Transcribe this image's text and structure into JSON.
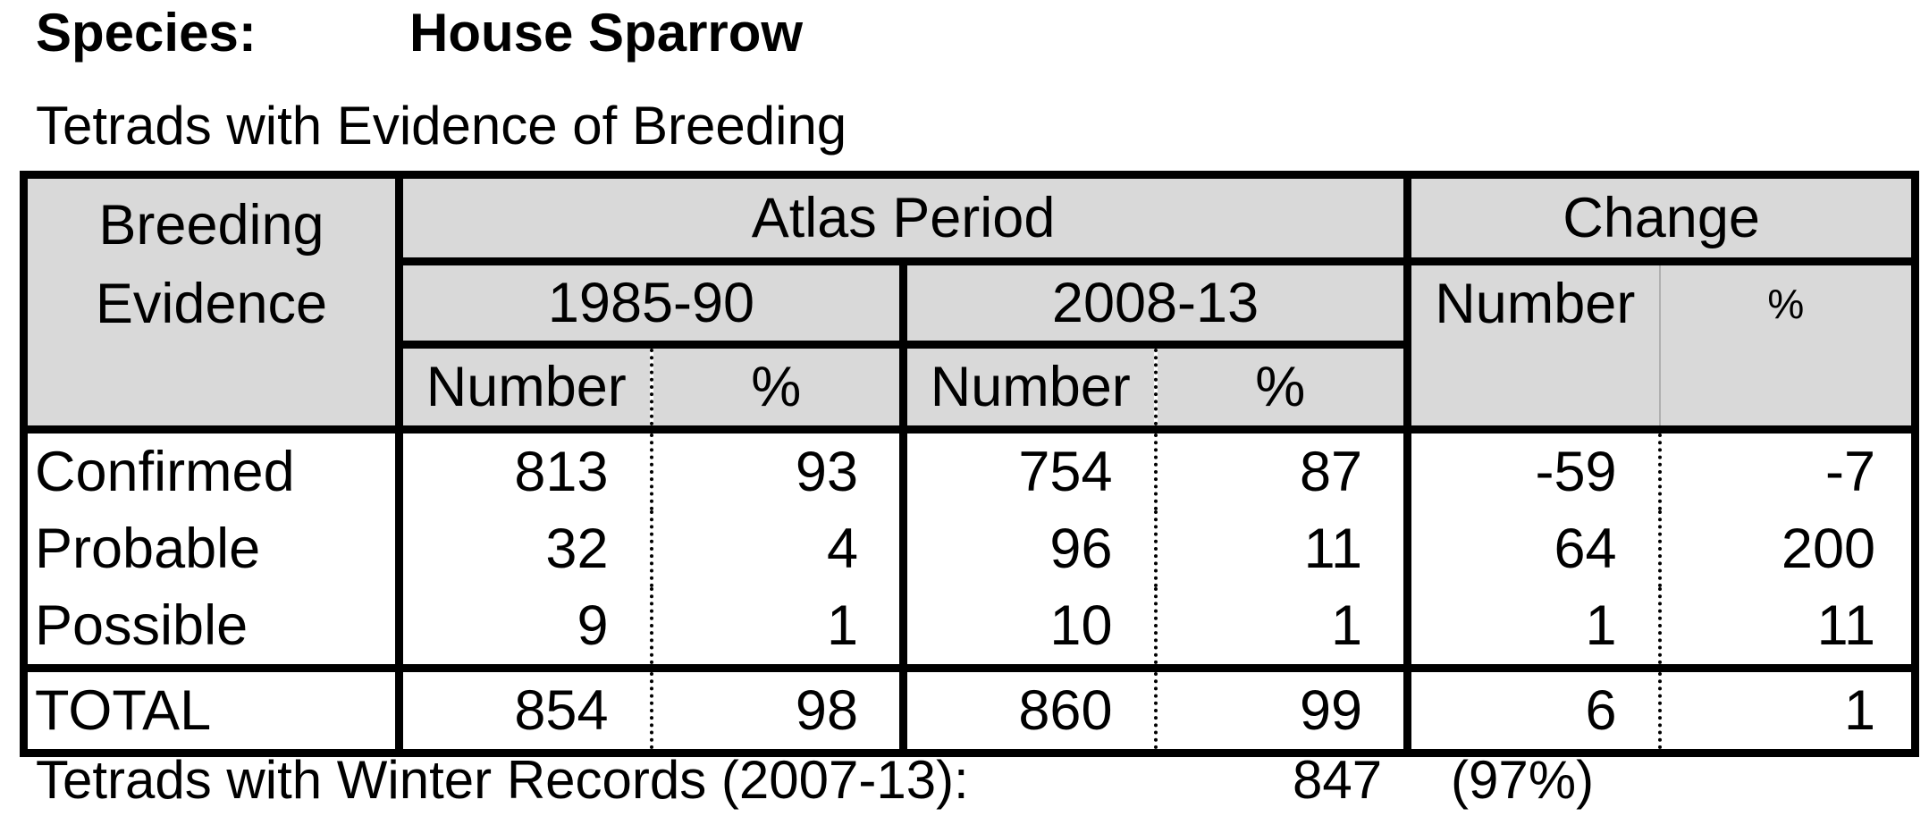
{
  "header": {
    "species_label": "Species:",
    "species_name": "House Sparrow",
    "subtitle": "Tetrads with Evidence of Breeding"
  },
  "table": {
    "corner_line1": "Breeding",
    "corner_line2": "Evidence",
    "atlas_period": "Atlas Period",
    "change": "Change",
    "period1": "1985-90",
    "period2": "2008-13",
    "col_number": "Number",
    "col_pct": "%",
    "rows": [
      {
        "label": "Confirmed",
        "n1": "813",
        "p1": "93",
        "n2": "754",
        "p2": "87",
        "cn": "-59",
        "cp": "-7"
      },
      {
        "label": "Probable",
        "n1": "32",
        "p1": "4",
        "n2": "96",
        "p2": "11",
        "cn": "64",
        "cp": "200"
      },
      {
        "label": "Possible",
        "n1": "9",
        "p1": "1",
        "n2": "10",
        "p2": "1",
        "cn": "1",
        "cp": "11"
      }
    ],
    "total": {
      "label": "TOTAL",
      "n1": "854",
      "p1": "98",
      "n2": "860",
      "p2": "99",
      "cn": "6",
      "cp": "1"
    }
  },
  "winter": {
    "label": "Tetrads with Winter Records (2007-13):",
    "value": "847",
    "percent": "(97%)"
  }
}
